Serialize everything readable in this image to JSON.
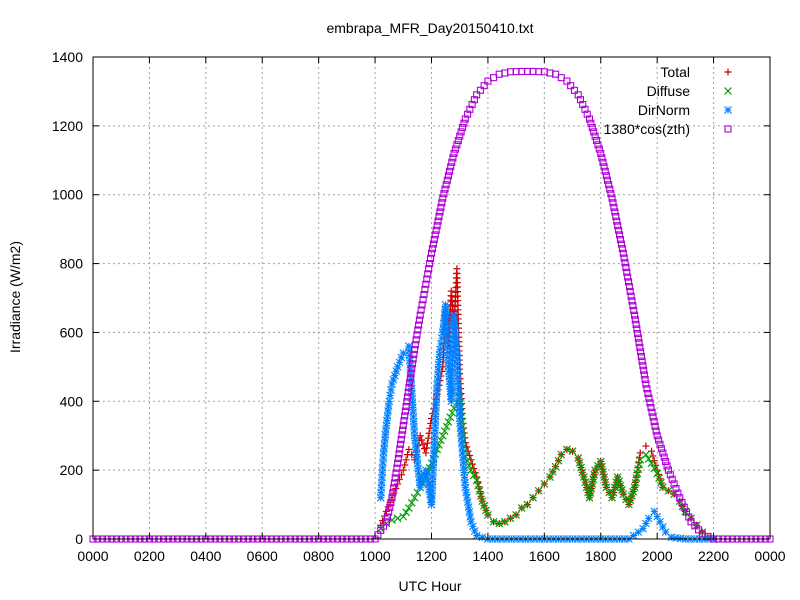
{
  "chart_data": {
    "type": "scatter",
    "title": "embrapa_MFR_Day20150410.txt",
    "xlabel": "UTC Hour",
    "ylabel": "Irradiance (W/m2)",
    "xlim": [
      0,
      24
    ],
    "ylim": [
      0,
      1400
    ],
    "grid": true,
    "legend_position": "top-right",
    "x_ticks": [
      {
        "value": 0,
        "label": "0000"
      },
      {
        "value": 2,
        "label": "0200"
      },
      {
        "value": 4,
        "label": "0400"
      },
      {
        "value": 6,
        "label": "0600"
      },
      {
        "value": 8,
        "label": "0800"
      },
      {
        "value": 10,
        "label": "1000"
      },
      {
        "value": 12,
        "label": "1200"
      },
      {
        "value": 14,
        "label": "1400"
      },
      {
        "value": 16,
        "label": "1600"
      },
      {
        "value": 18,
        "label": "1800"
      },
      {
        "value": 20,
        "label": "2000"
      },
      {
        "value": 22,
        "label": "2200"
      },
      {
        "value": 24,
        "label": "0000"
      }
    ],
    "y_ticks": [
      {
        "value": 0,
        "label": "0"
      },
      {
        "value": 200,
        "label": "200"
      },
      {
        "value": 400,
        "label": "400"
      },
      {
        "value": 600,
        "label": "600"
      },
      {
        "value": 800,
        "label": "800"
      },
      {
        "value": 1000,
        "label": "1000"
      },
      {
        "value": 1200,
        "label": "1200"
      },
      {
        "value": 1400,
        "label": "1400"
      }
    ],
    "series": [
      {
        "name": "Total",
        "marker": "plus",
        "color": "#cc0000",
        "points": [
          [
            10.2,
            40
          ],
          [
            10.4,
            80
          ],
          [
            10.6,
            120
          ],
          [
            10.8,
            160
          ],
          [
            11.0,
            200
          ],
          [
            11.2,
            260
          ],
          [
            11.4,
            230
          ],
          [
            11.6,
            300
          ],
          [
            11.8,
            250
          ],
          [
            12.0,
            350
          ],
          [
            12.2,
            420
          ],
          [
            12.4,
            500
          ],
          [
            12.5,
            650
          ],
          [
            12.6,
            560
          ],
          [
            12.7,
            720
          ],
          [
            12.8,
            620
          ],
          [
            12.9,
            785
          ],
          [
            13.0,
            480
          ],
          [
            13.1,
            350
          ],
          [
            13.2,
            280
          ],
          [
            13.4,
            230
          ],
          [
            13.6,
            180
          ],
          [
            13.8,
            110
          ],
          [
            14.0,
            70
          ],
          [
            14.2,
            50
          ],
          [
            14.4,
            45
          ],
          [
            14.6,
            50
          ],
          [
            14.8,
            60
          ],
          [
            15.0,
            70
          ],
          [
            15.2,
            90
          ],
          [
            15.4,
            100
          ],
          [
            15.6,
            120
          ],
          [
            15.8,
            140
          ],
          [
            16.0,
            160
          ],
          [
            16.2,
            180
          ],
          [
            16.4,
            210
          ],
          [
            16.6,
            245
          ],
          [
            16.8,
            260
          ],
          [
            17.0,
            255
          ],
          [
            17.2,
            235
          ],
          [
            17.4,
            180
          ],
          [
            17.6,
            120
          ],
          [
            17.8,
            200
          ],
          [
            18.0,
            225
          ],
          [
            18.2,
            150
          ],
          [
            18.4,
            120
          ],
          [
            18.6,
            180
          ],
          [
            18.8,
            130
          ],
          [
            19.0,
            100
          ],
          [
            19.2,
            150
          ],
          [
            19.4,
            250
          ],
          [
            19.6,
            270
          ],
          [
            19.8,
            255
          ],
          [
            20.0,
            200
          ],
          [
            20.2,
            150
          ],
          [
            20.4,
            140
          ],
          [
            20.6,
            130
          ],
          [
            20.8,
            110
          ],
          [
            21.0,
            80
          ],
          [
            21.2,
            60
          ],
          [
            21.4,
            40
          ],
          [
            21.6,
            20
          ],
          [
            21.8,
            5
          ]
        ]
      },
      {
        "name": "Diffuse",
        "marker": "cross",
        "color": "#00a000",
        "points": [
          [
            10.2,
            30
          ],
          [
            10.4,
            45
          ],
          [
            10.6,
            55
          ],
          [
            10.8,
            60
          ],
          [
            11.0,
            65
          ],
          [
            11.2,
            90
          ],
          [
            11.4,
            120
          ],
          [
            11.6,
            150
          ],
          [
            11.8,
            180
          ],
          [
            12.0,
            220
          ],
          [
            12.2,
            260
          ],
          [
            12.4,
            300
          ],
          [
            12.6,
            340
          ],
          [
            12.8,
            380
          ],
          [
            13.0,
            410
          ],
          [
            13.1,
            300
          ],
          [
            13.2,
            240
          ],
          [
            13.4,
            200
          ],
          [
            13.6,
            170
          ],
          [
            13.8,
            110
          ],
          [
            14.0,
            70
          ],
          [
            14.2,
            50
          ],
          [
            14.4,
            45
          ],
          [
            14.6,
            50
          ],
          [
            14.8,
            60
          ],
          [
            15.0,
            70
          ],
          [
            15.2,
            90
          ],
          [
            15.4,
            100
          ],
          [
            15.6,
            120
          ],
          [
            15.8,
            140
          ],
          [
            16.0,
            160
          ],
          [
            16.2,
            180
          ],
          [
            16.4,
            210
          ],
          [
            16.6,
            245
          ],
          [
            16.8,
            260
          ],
          [
            17.0,
            255
          ],
          [
            17.2,
            235
          ],
          [
            17.4,
            180
          ],
          [
            17.6,
            120
          ],
          [
            17.8,
            200
          ],
          [
            18.0,
            225
          ],
          [
            18.2,
            150
          ],
          [
            18.4,
            120
          ],
          [
            18.6,
            180
          ],
          [
            18.8,
            130
          ],
          [
            19.0,
            100
          ],
          [
            19.2,
            150
          ],
          [
            19.4,
            230
          ],
          [
            19.6,
            245
          ],
          [
            19.8,
            220
          ],
          [
            20.0,
            190
          ],
          [
            20.2,
            150
          ],
          [
            20.4,
            140
          ],
          [
            20.6,
            130
          ],
          [
            20.8,
            110
          ],
          [
            21.0,
            80
          ],
          [
            21.2,
            60
          ],
          [
            21.4,
            40
          ],
          [
            21.6,
            20
          ],
          [
            21.8,
            5
          ]
        ]
      },
      {
        "name": "DirNorm",
        "marker": "star",
        "color": "#0080ff",
        "points": [
          [
            10.2,
            120
          ],
          [
            10.3,
            250
          ],
          [
            10.4,
            330
          ],
          [
            10.5,
            400
          ],
          [
            10.6,
            450
          ],
          [
            10.8,
            500
          ],
          [
            11.0,
            540
          ],
          [
            11.2,
            560
          ],
          [
            11.4,
            300
          ],
          [
            11.6,
            150
          ],
          [
            11.8,
            200
          ],
          [
            12.0,
            100
          ],
          [
            12.2,
            450
          ],
          [
            12.3,
            550
          ],
          [
            12.4,
            600
          ],
          [
            12.5,
            680
          ],
          [
            12.6,
            500
          ],
          [
            12.7,
            400
          ],
          [
            12.8,
            650
          ],
          [
            12.9,
            550
          ],
          [
            13.0,
            350
          ],
          [
            13.1,
            250
          ],
          [
            13.2,
            150
          ],
          [
            13.4,
            50
          ],
          [
            13.6,
            10
          ],
          [
            14.0,
            0
          ],
          [
            15.0,
            0
          ],
          [
            16.0,
            0
          ],
          [
            17.0,
            0
          ],
          [
            18.0,
            0
          ],
          [
            19.0,
            0
          ],
          [
            19.5,
            30
          ],
          [
            19.7,
            60
          ],
          [
            19.9,
            80
          ],
          [
            20.1,
            50
          ],
          [
            20.3,
            20
          ],
          [
            20.5,
            5
          ],
          [
            21.0,
            0
          ],
          [
            22.0,
            0
          ]
        ]
      },
      {
        "name": "1380*cos(zth)",
        "marker": "square",
        "color": "#b000d8",
        "points": [
          [
            0,
            0
          ],
          [
            1,
            0
          ],
          [
            2,
            0
          ],
          [
            3,
            0
          ],
          [
            4,
            0
          ],
          [
            5,
            0
          ],
          [
            6,
            0
          ],
          [
            7,
            0
          ],
          [
            8,
            0
          ],
          [
            9,
            0
          ],
          [
            10.0,
            0
          ],
          [
            10.4,
            50
          ],
          [
            10.6,
            120
          ],
          [
            10.8,
            220
          ],
          [
            11.0,
            330
          ],
          [
            11.2,
            440
          ],
          [
            11.4,
            550
          ],
          [
            11.6,
            650
          ],
          [
            11.8,
            740
          ],
          [
            12.0,
            830
          ],
          [
            12.4,
            990
          ],
          [
            12.8,
            1120
          ],
          [
            13.2,
            1220
          ],
          [
            13.6,
            1290
          ],
          [
            14.0,
            1330
          ],
          [
            14.4,
            1350
          ],
          [
            14.8,
            1357
          ],
          [
            15.2,
            1358
          ],
          [
            15.6,
            1358
          ],
          [
            16.0,
            1357
          ],
          [
            16.4,
            1350
          ],
          [
            16.8,
            1330
          ],
          [
            17.2,
            1290
          ],
          [
            17.6,
            1220
          ],
          [
            18.0,
            1120
          ],
          [
            18.4,
            990
          ],
          [
            18.8,
            830
          ],
          [
            19.2,
            650
          ],
          [
            19.6,
            450
          ],
          [
            20.0,
            300
          ],
          [
            20.4,
            200
          ],
          [
            20.8,
            120
          ],
          [
            21.2,
            50
          ],
          [
            21.6,
            15
          ],
          [
            22.0,
            0
          ],
          [
            23.0,
            0
          ],
          [
            24.0,
            0
          ]
        ]
      }
    ]
  }
}
